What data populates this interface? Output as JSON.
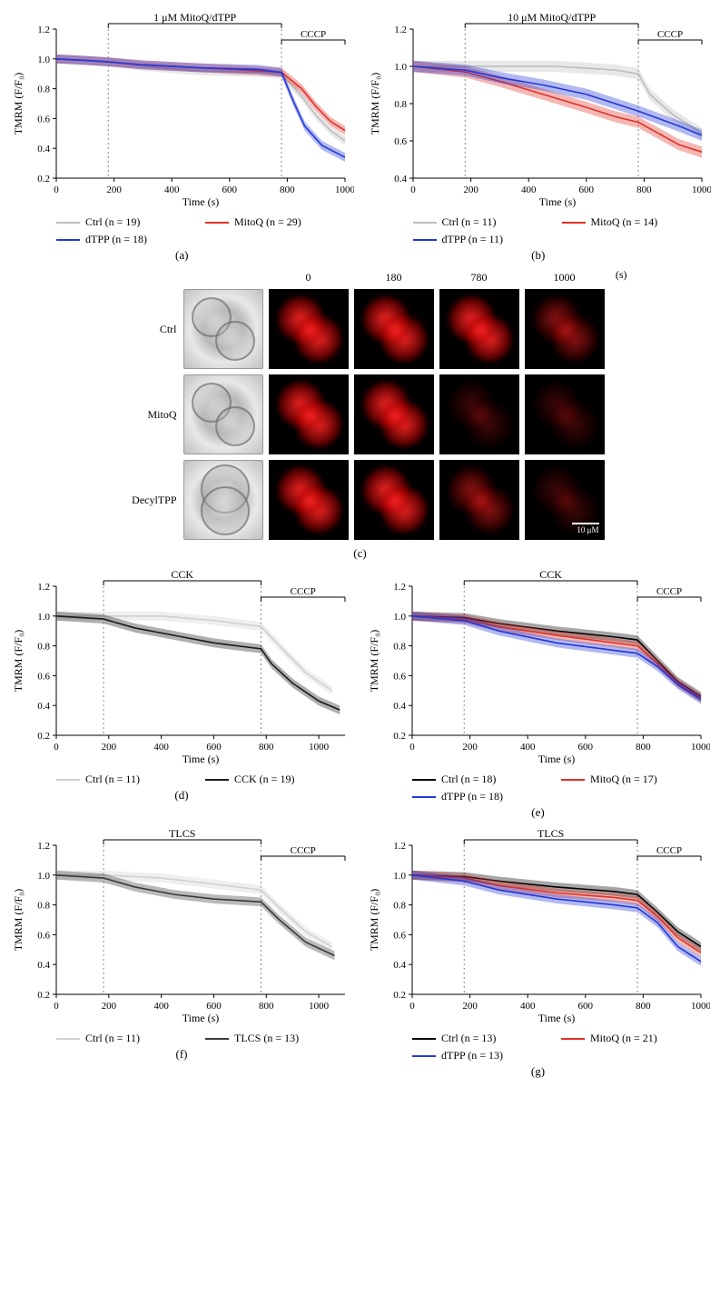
{
  "global": {
    "ylabel": "TMRM (F/F₀)",
    "xlabel": "Time (s)",
    "cccp_label": "CCCP",
    "ylim": [
      0.2,
      1.2
    ],
    "ytick_step": 0.2,
    "xlim": [
      0,
      1000
    ],
    "xtick_step": 200,
    "treat_start_s": 180,
    "treat_end_s": 780,
    "background_color": "#ffffff",
    "axis_color": "#000000",
    "dashed_color": "#888888",
    "label_fontsize": 12,
    "tick_fontsize": 11,
    "line_width": 1.6,
    "errorbar_alpha": 0.35
  },
  "colors": {
    "ctrl_gray": "#bdbdbd",
    "mitoq_red": "#e03127",
    "dtpp_blue": "#2237d8",
    "ctrl_light": "#d0d0d0",
    "cck_black": "#1a1a1a",
    "tlcs_dark": "#3a3a3a",
    "ctrl_black": "#000000"
  },
  "panel_a": {
    "sublabel": "(a)",
    "treatment_label": "1 μM MitoQ/dTPP",
    "legend": [
      {
        "label": "Ctrl (n = 19)",
        "color_key": "ctrl_gray"
      },
      {
        "label": "MitoQ (n = 29)",
        "color_key": "mitoq_red"
      },
      {
        "label": "dTPP (n = 18)",
        "color_key": "dtpp_blue"
      }
    ],
    "series": {
      "ctrl": {
        "color_key": "ctrl_gray",
        "points": [
          [
            0,
            1.0
          ],
          [
            100,
            0.99
          ],
          [
            180,
            0.98
          ],
          [
            300,
            0.95
          ],
          [
            500,
            0.92
          ],
          [
            700,
            0.91
          ],
          [
            780,
            0.9
          ],
          [
            850,
            0.75
          ],
          [
            900,
            0.62
          ],
          [
            950,
            0.52
          ],
          [
            1000,
            0.45
          ]
        ]
      },
      "mitoq": {
        "color_key": "mitoq_red",
        "points": [
          [
            0,
            1.0
          ],
          [
            100,
            0.99
          ],
          [
            180,
            0.98
          ],
          [
            300,
            0.96
          ],
          [
            500,
            0.94
          ],
          [
            700,
            0.92
          ],
          [
            780,
            0.91
          ],
          [
            850,
            0.8
          ],
          [
            900,
            0.68
          ],
          [
            950,
            0.58
          ],
          [
            1000,
            0.52
          ]
        ]
      },
      "dtpp": {
        "color_key": "dtpp_blue",
        "points": [
          [
            0,
            1.0
          ],
          [
            100,
            0.99
          ],
          [
            180,
            0.98
          ],
          [
            300,
            0.96
          ],
          [
            500,
            0.94
          ],
          [
            700,
            0.93
          ],
          [
            780,
            0.91
          ],
          [
            820,
            0.72
          ],
          [
            860,
            0.55
          ],
          [
            920,
            0.42
          ],
          [
            1000,
            0.34
          ]
        ]
      }
    }
  },
  "panel_b": {
    "sublabel": "(b)",
    "treatment_label": "10 μM MitoQ/dTPP",
    "legend": [
      {
        "label": "Ctrl (n = 11)",
        "color_key": "ctrl_gray"
      },
      {
        "label": "MitoQ (n = 14)",
        "color_key": "mitoq_red"
      },
      {
        "label": "dTPP (n = 11)",
        "color_key": "dtpp_blue"
      }
    ],
    "series": {
      "ctrl": {
        "color_key": "ctrl_gray",
        "points": [
          [
            0,
            1.0
          ],
          [
            180,
            1.0
          ],
          [
            300,
            1.0
          ],
          [
            500,
            1.0
          ],
          [
            700,
            0.98
          ],
          [
            780,
            0.96
          ],
          [
            820,
            0.85
          ],
          [
            900,
            0.74
          ],
          [
            1000,
            0.64
          ]
        ]
      },
      "mitoq": {
        "color_key": "mitoq_red",
        "points": [
          [
            0,
            1.0
          ],
          [
            180,
            0.97
          ],
          [
            300,
            0.92
          ],
          [
            450,
            0.85
          ],
          [
            600,
            0.78
          ],
          [
            700,
            0.73
          ],
          [
            780,
            0.7
          ],
          [
            850,
            0.64
          ],
          [
            920,
            0.58
          ],
          [
            1000,
            0.54
          ]
        ]
      },
      "dtpp": {
        "color_key": "dtpp_blue",
        "points": [
          [
            0,
            1.0
          ],
          [
            180,
            0.98
          ],
          [
            300,
            0.94
          ],
          [
            450,
            0.9
          ],
          [
            600,
            0.85
          ],
          [
            700,
            0.8
          ],
          [
            780,
            0.76
          ],
          [
            850,
            0.72
          ],
          [
            920,
            0.68
          ],
          [
            1000,
            0.63
          ]
        ]
      }
    },
    "ylim": [
      0.4,
      1.2
    ]
  },
  "panel_c": {
    "sublabel": "(c)",
    "time_headers": [
      "0",
      "180",
      "780",
      "1000",
      "(s)"
    ],
    "rows": [
      {
        "label": "Ctrl",
        "bf_class": "c4",
        "intensities": [
          "bright",
          "bright",
          "bright",
          "mid"
        ]
      },
      {
        "label": "MitoQ",
        "bf_class": "c4",
        "intensities": [
          "bright",
          "bright",
          "dim",
          "dim"
        ]
      },
      {
        "label": "DecylTPP",
        "bf_class": "c2",
        "intensities": [
          "bright",
          "bright",
          "mid",
          "dim"
        ]
      }
    ],
    "scale_text": "10 μM"
  },
  "panel_d": {
    "sublabel": "(d)",
    "treatment_label": "CCK",
    "xlim": [
      0,
      1100
    ],
    "legend": [
      {
        "label": "Ctrl (n = 11)",
        "color_key": "ctrl_light"
      },
      {
        "label": "CCK (n = 19)",
        "color_key": "cck_black"
      }
    ],
    "series": {
      "ctrl": {
        "color_key": "ctrl_light",
        "points": [
          [
            0,
            1.0
          ],
          [
            180,
            1.0
          ],
          [
            400,
            1.0
          ],
          [
            600,
            0.97
          ],
          [
            780,
            0.93
          ],
          [
            850,
            0.8
          ],
          [
            950,
            0.62
          ],
          [
            1050,
            0.5
          ]
        ]
      },
      "cck": {
        "color_key": "cck_black",
        "points": [
          [
            0,
            1.0
          ],
          [
            180,
            0.98
          ],
          [
            300,
            0.92
          ],
          [
            450,
            0.87
          ],
          [
            600,
            0.82
          ],
          [
            780,
            0.78
          ],
          [
            820,
            0.68
          ],
          [
            900,
            0.55
          ],
          [
            1000,
            0.43
          ],
          [
            1080,
            0.37
          ]
        ]
      }
    }
  },
  "panel_e": {
    "sublabel": "(e)",
    "treatment_label": "CCK",
    "legend": [
      {
        "label": "Ctrl (n = 18)",
        "color_key": "ctrl_black"
      },
      {
        "label": "MitoQ (n = 17)",
        "color_key": "mitoq_red"
      },
      {
        "label": "dTPP (n = 18)",
        "color_key": "dtpp_blue"
      }
    ],
    "series": {
      "ctrl": {
        "color_key": "ctrl_black",
        "points": [
          [
            0,
            1.0
          ],
          [
            180,
            0.99
          ],
          [
            300,
            0.95
          ],
          [
            500,
            0.9
          ],
          [
            700,
            0.86
          ],
          [
            780,
            0.84
          ],
          [
            850,
            0.7
          ],
          [
            920,
            0.56
          ],
          [
            1000,
            0.46
          ]
        ]
      },
      "mitoq": {
        "color_key": "mitoq_red",
        "points": [
          [
            0,
            1.0
          ],
          [
            180,
            0.98
          ],
          [
            300,
            0.93
          ],
          [
            500,
            0.87
          ],
          [
            700,
            0.82
          ],
          [
            780,
            0.8
          ],
          [
            850,
            0.68
          ],
          [
            920,
            0.55
          ],
          [
            1000,
            0.45
          ]
        ]
      },
      "dtpp": {
        "color_key": "dtpp_blue",
        "points": [
          [
            0,
            1.0
          ],
          [
            180,
            0.97
          ],
          [
            300,
            0.9
          ],
          [
            500,
            0.82
          ],
          [
            700,
            0.77
          ],
          [
            780,
            0.75
          ],
          [
            850,
            0.66
          ],
          [
            920,
            0.54
          ],
          [
            1000,
            0.44
          ]
        ]
      }
    }
  },
  "panel_f": {
    "sublabel": "(f)",
    "treatment_label": "TLCS",
    "xlim": [
      0,
      1100
    ],
    "legend": [
      {
        "label": "Ctrl (n = 11)",
        "color_key": "ctrl_light"
      },
      {
        "label": "TLCS (n = 13)",
        "color_key": "tlcs_dark"
      }
    ],
    "series": {
      "ctrl": {
        "color_key": "ctrl_light",
        "points": [
          [
            0,
            1.0
          ],
          [
            180,
            1.0
          ],
          [
            400,
            0.98
          ],
          [
            600,
            0.94
          ],
          [
            780,
            0.9
          ],
          [
            850,
            0.78
          ],
          [
            950,
            0.62
          ],
          [
            1050,
            0.52
          ]
        ]
      },
      "tlcs": {
        "color_key": "tlcs_dark",
        "points": [
          [
            0,
            1.0
          ],
          [
            180,
            0.98
          ],
          [
            300,
            0.92
          ],
          [
            450,
            0.87
          ],
          [
            600,
            0.84
          ],
          [
            780,
            0.82
          ],
          [
            850,
            0.7
          ],
          [
            950,
            0.55
          ],
          [
            1060,
            0.46
          ]
        ]
      }
    }
  },
  "panel_g": {
    "sublabel": "(g)",
    "treatment_label": "TLCS",
    "legend": [
      {
        "label": "Ctrl (n = 13)",
        "color_key": "ctrl_black"
      },
      {
        "label": "MitoQ (n = 21)",
        "color_key": "mitoq_red"
      },
      {
        "label": "dTPP (n = 13)",
        "color_key": "dtpp_blue"
      }
    ],
    "series": {
      "ctrl": {
        "color_key": "ctrl_black",
        "points": [
          [
            0,
            1.0
          ],
          [
            180,
            0.99
          ],
          [
            300,
            0.96
          ],
          [
            500,
            0.92
          ],
          [
            700,
            0.89
          ],
          [
            780,
            0.87
          ],
          [
            850,
            0.75
          ],
          [
            920,
            0.62
          ],
          [
            1000,
            0.52
          ]
        ]
      },
      "mitoq": {
        "color_key": "mitoq_red",
        "points": [
          [
            0,
            1.0
          ],
          [
            180,
            0.98
          ],
          [
            300,
            0.93
          ],
          [
            500,
            0.88
          ],
          [
            700,
            0.85
          ],
          [
            780,
            0.83
          ],
          [
            850,
            0.72
          ],
          [
            920,
            0.58
          ],
          [
            1000,
            0.48
          ]
        ]
      },
      "dtpp": {
        "color_key": "dtpp_blue",
        "points": [
          [
            0,
            1.0
          ],
          [
            180,
            0.96
          ],
          [
            300,
            0.9
          ],
          [
            500,
            0.84
          ],
          [
            700,
            0.8
          ],
          [
            780,
            0.78
          ],
          [
            850,
            0.68
          ],
          [
            920,
            0.52
          ],
          [
            1000,
            0.42
          ]
        ]
      }
    }
  }
}
